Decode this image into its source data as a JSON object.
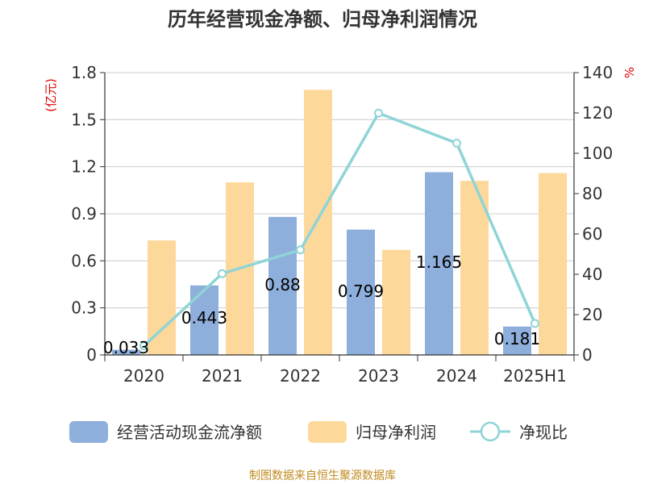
{
  "chart_data": {
    "type": "bar",
    "title": "历年经营现金净额、归母净利润情况",
    "left_unit": "(亿元)",
    "right_unit": "%",
    "categories": [
      "2020",
      "2021",
      "2022",
      "2023",
      "2024",
      "2025H1"
    ],
    "ylim_left": [
      0,
      1.8
    ],
    "ylim_right": [
      0,
      140
    ],
    "y_ticks_left": [
      "0",
      "0.3",
      "0.6",
      "0.9",
      "1.2",
      "1.5",
      "1.8"
    ],
    "y_ticks_right": [
      "0",
      "20",
      "40",
      "60",
      "80",
      "100",
      "120",
      "140"
    ],
    "grid": true,
    "legend_position": "bottom",
    "series": [
      {
        "name": "经营活动现金流净额",
        "kind": "bar",
        "axis": "left",
        "color": "#8eaedb",
        "values": [
          0.033,
          0.443,
          0.88,
          0.799,
          1.165,
          0.181
        ],
        "labels": [
          "0.033",
          "0.443",
          "0.88",
          "0.799",
          "1.165",
          "0.181"
        ]
      },
      {
        "name": "归母净利润",
        "kind": "bar",
        "axis": "left",
        "color": "#fdd89b",
        "values": [
          0.73,
          1.1,
          1.69,
          0.67,
          1.11,
          1.16
        ]
      },
      {
        "name": "净现比",
        "kind": "line",
        "axis": "right",
        "color": "#8fd4d6",
        "values": [
          4.5,
          40.3,
          52.1,
          119.9,
          105.0,
          15.6
        ]
      }
    ]
  },
  "source": "制图数据来自恒生聚源数据库"
}
